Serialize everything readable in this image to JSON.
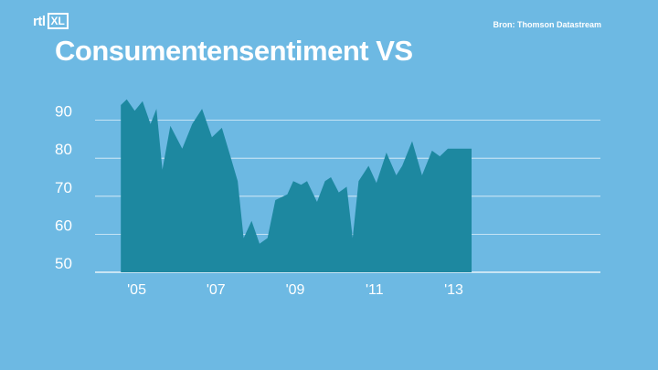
{
  "channel": {
    "logo_left": "rtl",
    "logo_right": "XL"
  },
  "source_label": "Bron: Thomson Datastream",
  "chart_data": {
    "type": "area",
    "title": "Consumentensentiment VS",
    "ylim": [
      50,
      100
    ],
    "xlim": [
      2003.95,
      2016.7
    ],
    "ytick_labels": [
      "50",
      "60",
      "70",
      "80",
      "90"
    ],
    "yticks": [
      50,
      60,
      70,
      80,
      90
    ],
    "xtick_labels": [
      "'05",
      "'07",
      "'09",
      "'11",
      "'13"
    ],
    "xticks": [
      2005,
      2007,
      2009,
      2011,
      2013
    ],
    "grid": true,
    "colors": {
      "area": "#1d88a0",
      "grid": "#ffffff",
      "background": "#6db9e3"
    },
    "series": [
      {
        "x": [
          2004.6,
          2004.75,
          2004.95,
          2005.15,
          2005.35,
          2005.5,
          2005.65,
          2005.85,
          2006.15,
          2006.4,
          2006.65,
          2006.9,
          2007.15,
          2007.35,
          2007.55,
          2007.7,
          2007.9,
          2008.1,
          2008.3,
          2008.5,
          2008.8,
          2008.95,
          2009.15,
          2009.3,
          2009.55,
          2009.75,
          2009.9,
          2010.1,
          2010.3,
          2010.45,
          2010.6,
          2010.85,
          2011.05,
          2011.3,
          2011.55,
          2011.7,
          2011.95,
          2012.2,
          2012.45,
          2012.65,
          2012.85,
          2013.0,
          2013.2,
          2013.45,
          2013.65,
          2013.9,
          2014.1,
          2014.3,
          2014.45
        ],
        "y": [
          94,
          95.5,
          92.5,
          95,
          89,
          93,
          77,
          88.5,
          82.5,
          89,
          93,
          85.5,
          88,
          81,
          74,
          59,
          63.5,
          57.5,
          59,
          69,
          70.5,
          74,
          73,
          74,
          68.5,
          74,
          75,
          71,
          72.5,
          59,
          74,
          78,
          73.5,
          81.5,
          75.5,
          78,
          84.5,
          75.5,
          82,
          80.5,
          82.5,
          82.5,
          82.5,
          82.5,
          82.5,
          82.5,
          82.5,
          82.5,
          82.5
        ]
      }
    ]
  }
}
